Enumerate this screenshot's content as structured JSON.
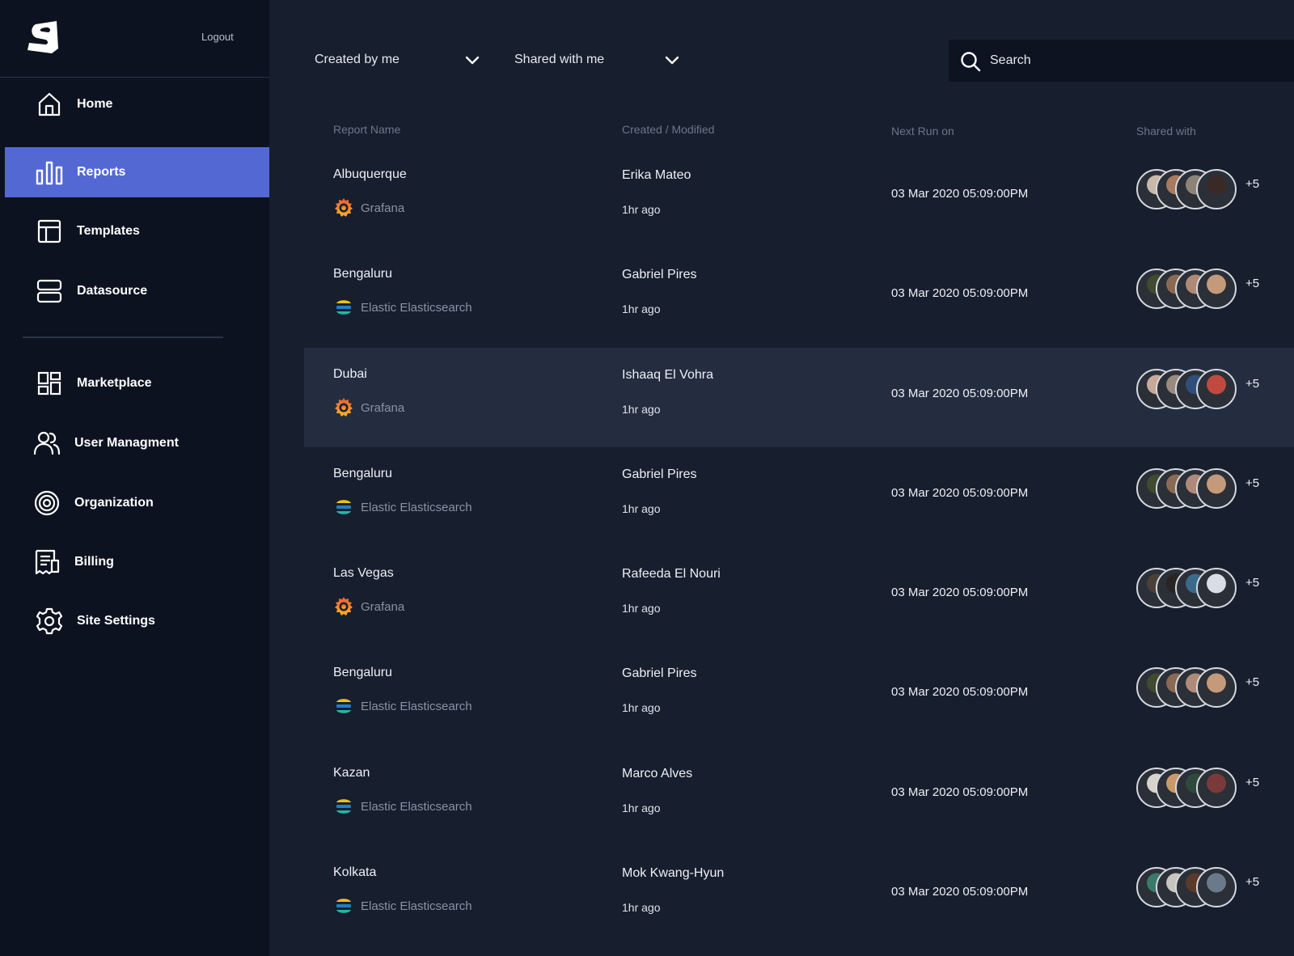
{
  "sidebar": {
    "logout_label": "Logout",
    "items": [
      {
        "key": "home",
        "label": "Home",
        "icon": "home-icon"
      },
      {
        "key": "reports",
        "label": "Reports",
        "icon": "bar-chart-icon",
        "active": true
      },
      {
        "key": "templates",
        "label": "Templates",
        "icon": "layout-icon"
      },
      {
        "key": "datasource",
        "label": "Datasource",
        "icon": "server-icon"
      },
      {
        "key": "marketplace",
        "label": "Marketplace",
        "icon": "grid-icon"
      },
      {
        "key": "user-management",
        "label": "User Managment",
        "icon": "users-icon"
      },
      {
        "key": "organization",
        "label": "Organization",
        "icon": "target-icon"
      },
      {
        "key": "billing",
        "label": "Billing",
        "icon": "receipt-icon"
      },
      {
        "key": "site-settings",
        "label": "Site Settings",
        "icon": "gear-icon"
      }
    ]
  },
  "filters": {
    "created_by": "Created by me",
    "shared_with": "Shared with me"
  },
  "search": {
    "placeholder": "Search"
  },
  "table": {
    "columns": [
      "Report Name",
      "Created / Modified",
      "Next Run on",
      "Shared with"
    ],
    "rows": [
      {
        "name": "Albuquerque",
        "source": "Grafana",
        "source_icon": "grafana-icon",
        "owner": "Erika Mateo",
        "modified": "1hr ago",
        "next_run": "03 Mar 2020 05:09:00PM",
        "more": "+5",
        "avatar_colors": [
          "#c9b8a8",
          "#a87a5e",
          "#8d8478",
          "#3a2a26"
        ]
      },
      {
        "name": "Bengaluru",
        "source": "Elastic Elasticsearch",
        "source_icon": "elasticsearch-icon",
        "owner": "Gabriel Pires",
        "modified": "1hr ago",
        "next_run": "03 Mar 2020 05:09:00PM",
        "more": "+5",
        "avatar_colors": [
          "#3f4a2f",
          "#8a6a52",
          "#b08a78",
          "#c49a7a"
        ]
      },
      {
        "name": "Dubai",
        "source": "Grafana",
        "source_icon": "grafana-icon",
        "owner": "Ishaaq El Vohra",
        "modified": "1hr ago",
        "next_run": "03 Mar 2020 05:09:00PM",
        "more": "+5",
        "avatar_colors": [
          "#c7a99a",
          "#9a8b80",
          "#2f4f7a",
          "#c04a40"
        ]
      },
      {
        "name": "Bengaluru",
        "source": "Elastic Elasticsearch",
        "source_icon": "elasticsearch-icon",
        "owner": "Gabriel Pires",
        "modified": "1hr ago",
        "next_run": "03 Mar 2020 05:09:00PM",
        "more": "+5",
        "avatar_colors": [
          "#3f4a2f",
          "#8a6a52",
          "#b08a78",
          "#c49a7a"
        ]
      },
      {
        "name": "Las Vegas",
        "source": "Grafana",
        "source_icon": "grafana-icon",
        "owner": "Rafeeda El Nouri",
        "modified": "1hr ago",
        "next_run": "03 Mar 2020 05:09:00PM",
        "more": "+5",
        "avatar_colors": [
          "#4a4038",
          "#2a2422",
          "#3a6a8a",
          "#d8dde6"
        ]
      },
      {
        "name": "Bengaluru",
        "source": "Elastic Elasticsearch",
        "source_icon": "elasticsearch-icon",
        "owner": "Gabriel Pires",
        "modified": "1hr ago",
        "next_run": "03 Mar 2020 05:09:00PM",
        "more": "+5",
        "avatar_colors": [
          "#3f4a2f",
          "#8a6a52",
          "#b08a78",
          "#c49a7a"
        ]
      },
      {
        "name": "Kazan",
        "source": "Elastic Elasticsearch",
        "source_icon": "elasticsearch-icon",
        "owner": "Marco Alves",
        "modified": "1hr ago",
        "next_run": "03 Mar 2020 05:09:00PM",
        "more": "+5",
        "avatar_colors": [
          "#d8d2cc",
          "#c89a6a",
          "#2f4a3a",
          "#7a3a3a"
        ]
      },
      {
        "name": "Kolkata",
        "source": "Elastic Elasticsearch",
        "source_icon": "elasticsearch-icon",
        "owner": "Mok Kwang-Hyun",
        "modified": "1hr ago",
        "next_run": "03 Mar 2020 05:09:00PM",
        "more": "+5",
        "avatar_colors": [
          "#3a7a6a",
          "#c8c4be",
          "#5a3a2a",
          "#6a7a8a"
        ]
      }
    ]
  },
  "colors": {
    "sidebar_bg": "#0d1220",
    "main_bg": "#171e2e",
    "active_nav": "#5468d4",
    "highlight_row": "#242d40"
  }
}
